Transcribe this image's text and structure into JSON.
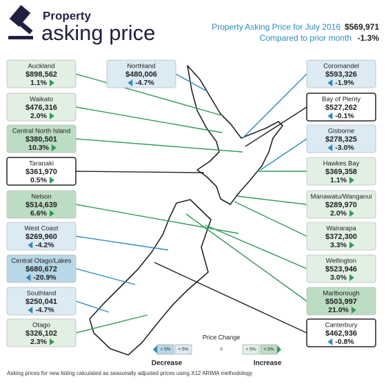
{
  "header": {
    "title_small": "Property",
    "title_large": "asking price",
    "summary_label": "Property Asking Price for July 2016",
    "summary_value": "$569,971",
    "change_label": "Compared to prior month",
    "change_value": "-1.3%"
  },
  "regions": [
    {
      "name": "Auckland",
      "price": "$898,562",
      "change": "1.1%",
      "color": "#e2f0e4"
    },
    {
      "name": "Waikato",
      "price": "$476,316",
      "change": "2.0%",
      "color": "#e2f0e4"
    },
    {
      "name": "Central North Island",
      "price": "$380,501",
      "change": "10.3%",
      "color": "#bcdcc3"
    },
    {
      "name": "Taranaki",
      "price": "$361,970",
      "change": "0.5%",
      "color": "#ffffff"
    },
    {
      "name": "Nelson",
      "price": "$514,639",
      "change": "6.6%",
      "color": "#bcdcc3"
    },
    {
      "name": "West Coast",
      "price": "$269,960",
      "change": "-4.2%",
      "color": "#dcebf3"
    },
    {
      "name": "Central Otago/Lakes",
      "price": "$680,672",
      "change": "-20.9%",
      "color": "#b8d7e7"
    },
    {
      "name": "Southland",
      "price": "$250,041",
      "change": "-4.7%",
      "color": "#dcebf3"
    },
    {
      "name": "Otago",
      "price": "$326,102",
      "change": "2.3%",
      "color": "#e2f0e4"
    },
    {
      "name": "Northland",
      "price": "$480,006",
      "change": "-4.7%",
      "color": "#dcebf3"
    },
    {
      "name": "Coromandel",
      "price": "$593,326",
      "change": "-1.9%",
      "color": "#dcebf3"
    },
    {
      "name": "Bay of Plenty",
      "price": "$527,262",
      "change": "-0.1%",
      "color": "#ffffff"
    },
    {
      "name": "Gisborne",
      "price": "$278,325",
      "change": "-3.0%",
      "color": "#dcebf3"
    },
    {
      "name": "Hawkes Bay",
      "price": "$369,358",
      "change": "1.1%",
      "color": "#e2f0e4"
    },
    {
      "name": "Manawatu/Wanganui",
      "price": "$289,970",
      "change": "2.0%",
      "color": "#e2f0e4"
    },
    {
      "name": "Wairarapa",
      "price": "$372,300",
      "change": "3.3%",
      "color": "#e2f0e4"
    },
    {
      "name": "Wellington",
      "price": "$523,946",
      "change": "3.0%",
      "color": "#e2f0e4"
    },
    {
      "name": "Marlborough",
      "price": "$503,997",
      "change": "21.0%",
      "color": "#bcdcc3"
    },
    {
      "name": "Canterbury",
      "price": "$462,936",
      "change": "-0.8%",
      "color": "#ffffff"
    }
  ],
  "legend": {
    "title": "Price Change",
    "labels": [
      "> 5%",
      "< 5%",
      "0",
      "> 5%",
      "< 5%"
    ],
    "colors": [
      "#b8d7e7",
      "#dcebf3",
      "#ffffff",
      "#e2f0e4",
      "#bcdcc3"
    ],
    "decrease": "Decrease",
    "increase": "Increase"
  },
  "footnote": "Asking prices for new listing calculated as seasonally adjusted prices using X12 ARIMA methodology"
}
